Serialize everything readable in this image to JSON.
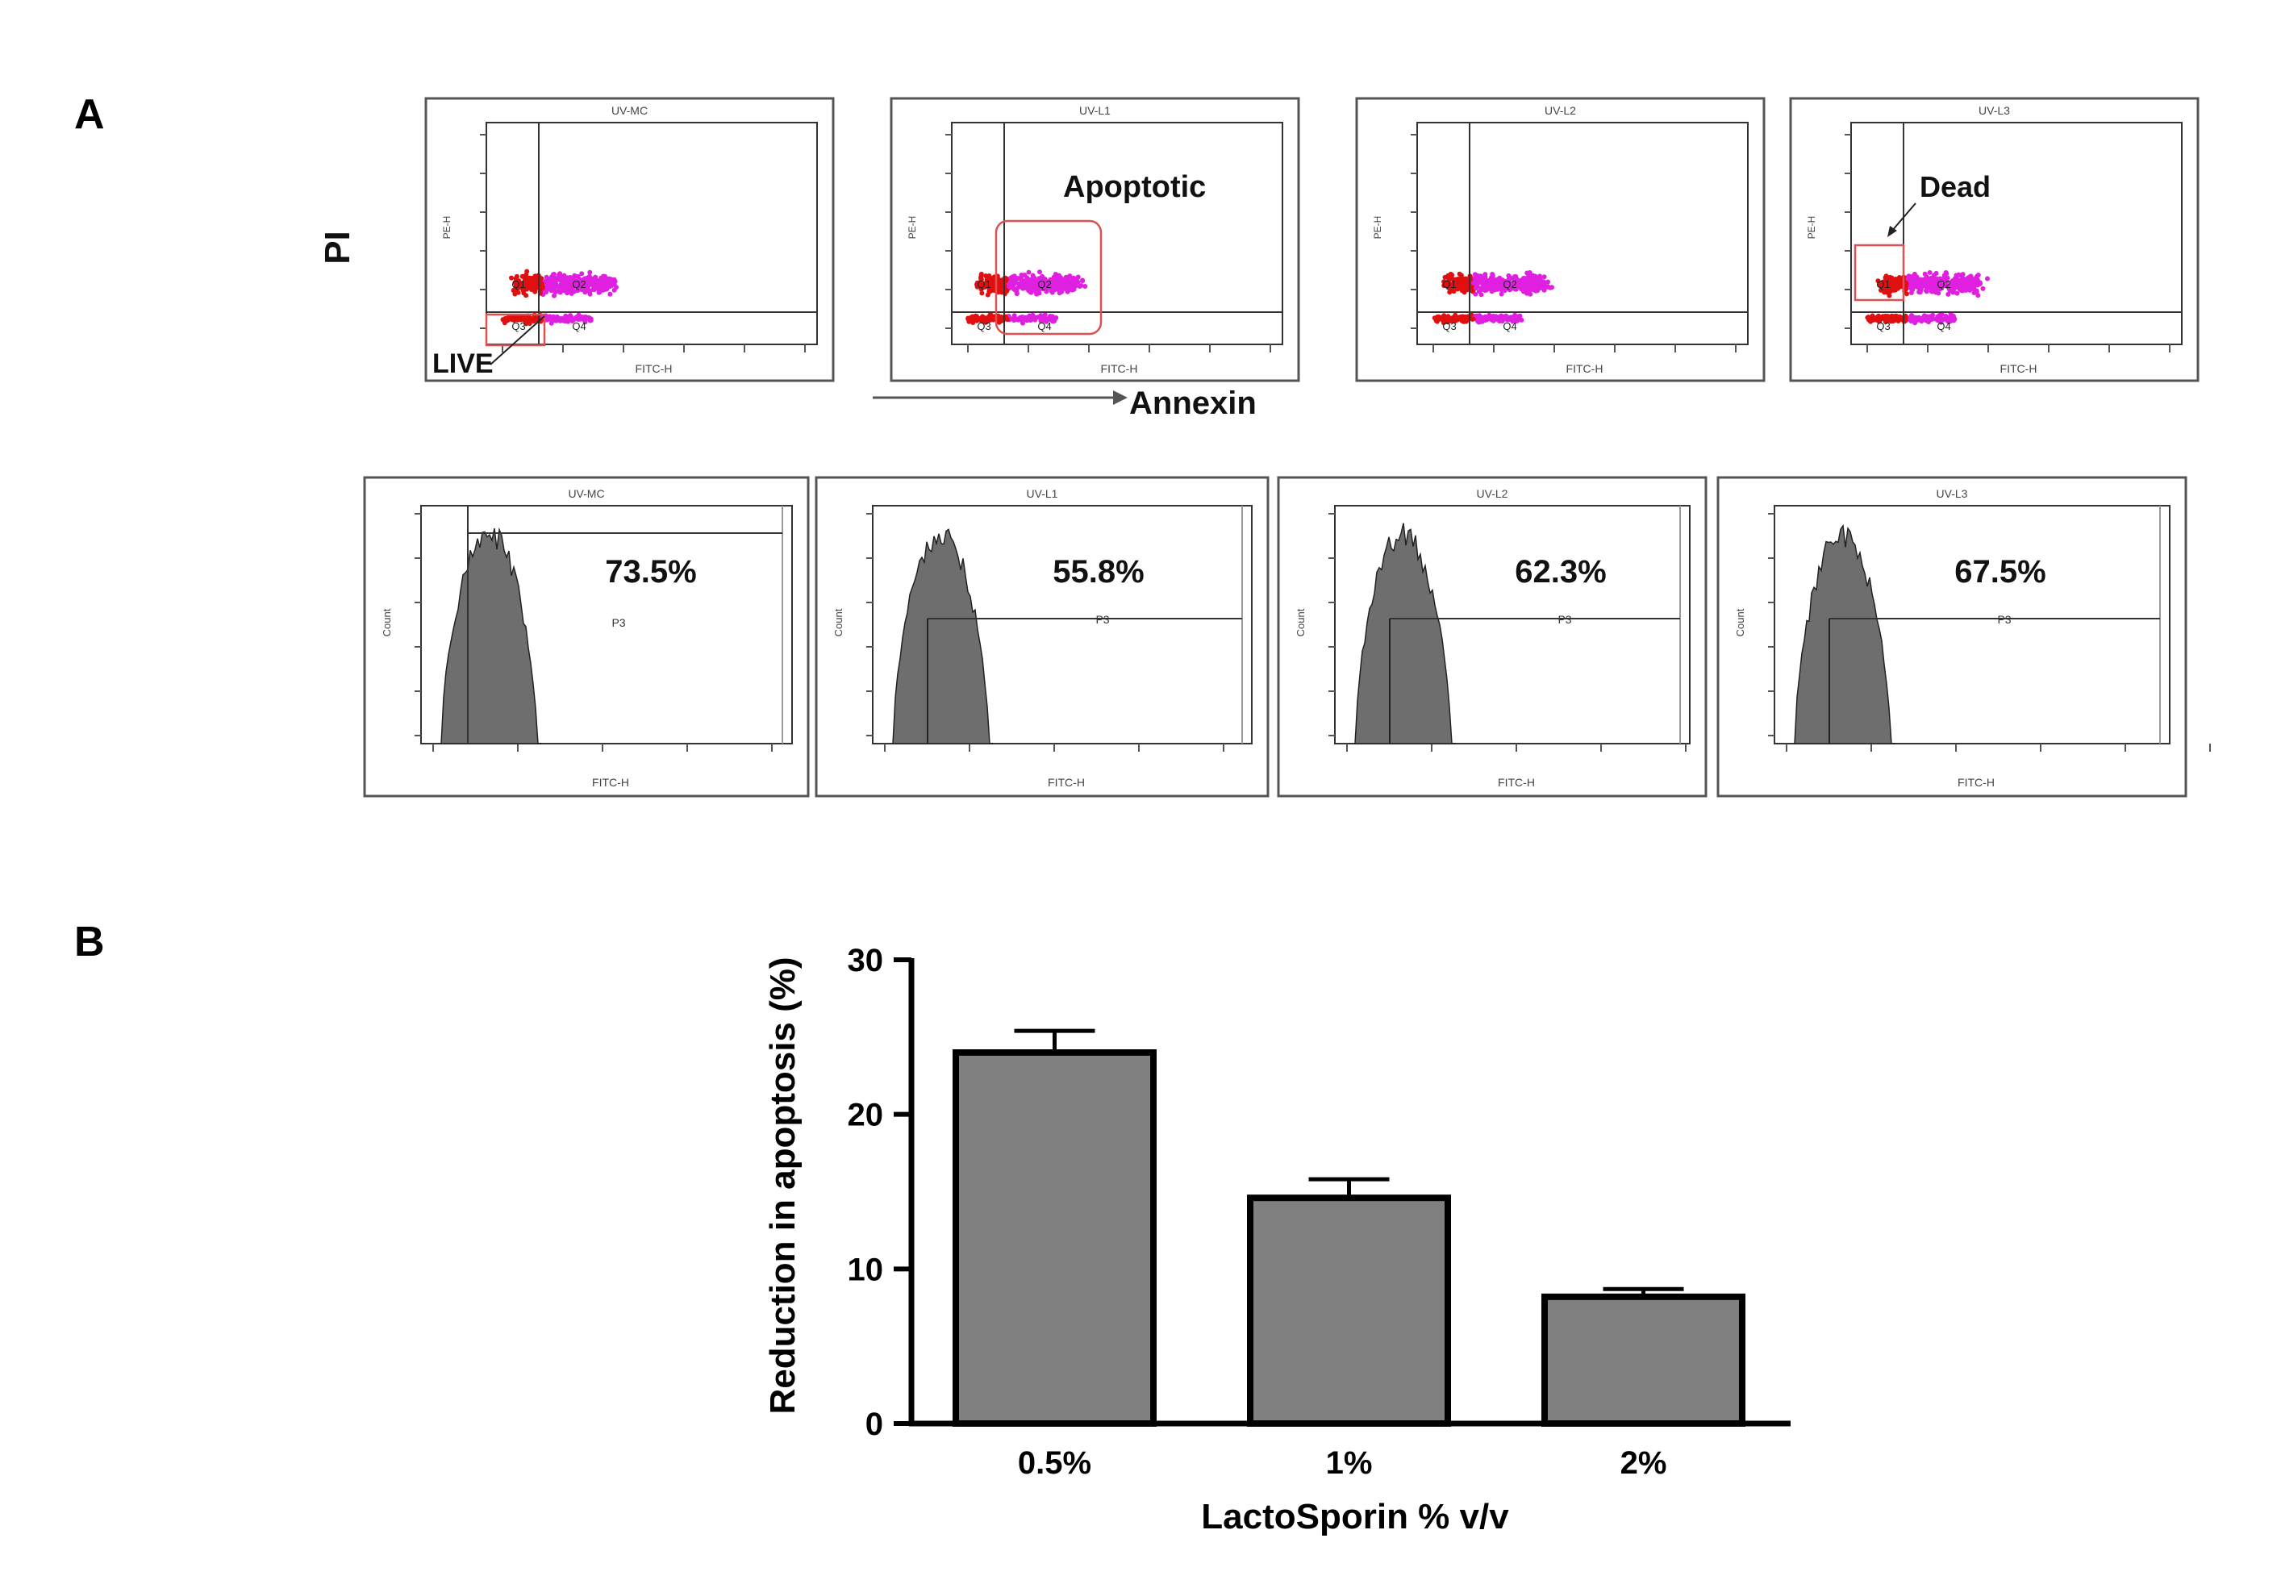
{
  "panels": {
    "a": "A",
    "b": "B"
  },
  "flow": {
    "y_axis_label": "PI",
    "x_axis_label": "Annexin",
    "dot_plots": [
      {
        "title": "UV-MC",
        "x_tick_label": "FITC-H",
        "y_tick_label": "PE-H",
        "quadrants": [
          "Q1",
          "Q2",
          "Q3",
          "Q4"
        ],
        "callout": "LIVE"
      },
      {
        "title": "UV-L1",
        "x_tick_label": "FITC-H",
        "y_tick_label": "PE-H",
        "quadrants": [
          "Q1",
          "Q2",
          "Q3",
          "Q4"
        ],
        "callout": "Apoptotic"
      },
      {
        "title": "UV-L2",
        "x_tick_label": "FITC-H",
        "y_tick_label": "PE-H",
        "quadrants": [
          "Q1",
          "Q2",
          "Q3",
          "Q4"
        ],
        "callout": ""
      },
      {
        "title": "UV-L3",
        "x_tick_label": "FITC-H",
        "y_tick_label": "PE-H",
        "quadrants": [
          "Q1",
          "Q2",
          "Q3",
          "Q4"
        ],
        "callout": "Dead"
      }
    ],
    "histograms": [
      {
        "title": "UV-MC",
        "percent": "73.5%",
        "gate": "P3",
        "x_label": "FITC-H",
        "y_label": "Count"
      },
      {
        "title": "UV-L1",
        "percent": "55.8%",
        "gate": "P3",
        "x_label": "FITC-H",
        "y_label": "Count"
      },
      {
        "title": "UV-L2",
        "percent": "62.3%",
        "gate": "P3",
        "x_label": "FITC-H",
        "y_label": "Count"
      },
      {
        "title": "UV-L3",
        "percent": "67.5%",
        "gate": "P3",
        "x_label": "FITC-H",
        "y_label": "Count"
      }
    ]
  },
  "chart_data": {
    "type": "bar",
    "title": "",
    "categories": [
      "0.5%",
      "1%",
      "2%"
    ],
    "values": [
      24,
      14.6,
      8.2
    ],
    "errors": [
      1.4,
      1.2,
      0.5
    ],
    "xlabel": "LactoSporin % v/v",
    "ylabel": "Reduction in apoptosis (%)",
    "ylim": [
      0,
      30
    ],
    "yticks": [
      0,
      10,
      20,
      30
    ],
    "bar_color": "#808080"
  }
}
